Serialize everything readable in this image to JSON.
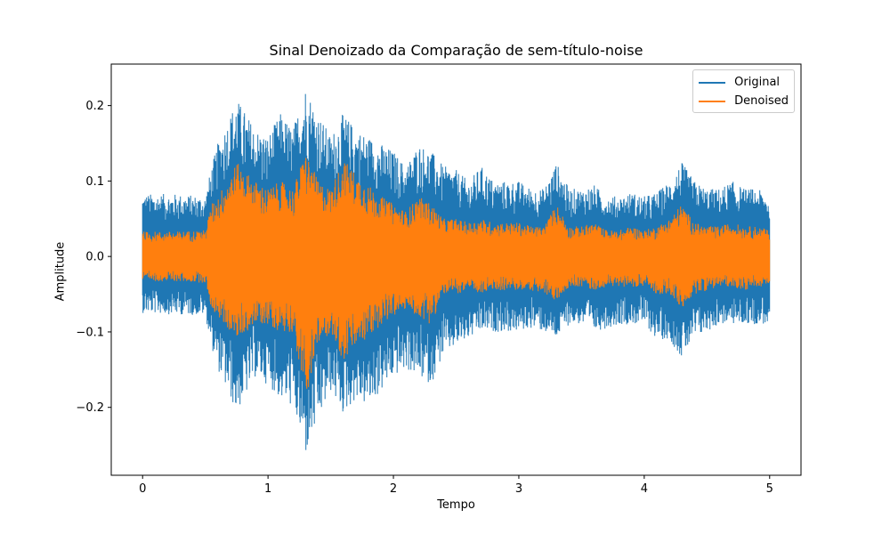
{
  "chart_data": {
    "type": "line",
    "title": "Sinal Denoizado da Comparação de sem-título-noise",
    "xlabel": "Tempo",
    "ylabel": "Amplitude",
    "xlim": [
      -0.25,
      5.25
    ],
    "ylim": [
      -0.29,
      0.255
    ],
    "xticks": [
      0,
      1,
      2,
      3,
      4,
      5
    ],
    "xtick_labels": [
      "0",
      "1",
      "2",
      "3",
      "4",
      "5"
    ],
    "yticks": [
      -0.2,
      -0.1,
      0.0,
      0.1,
      0.2
    ],
    "ytick_labels": [
      "−0.2",
      "−0.1",
      "0.0",
      "0.1",
      "0.2"
    ],
    "grid": false,
    "legend_position": "top-right",
    "series": [
      {
        "name": "Original",
        "color": "#1f77b4",
        "x": [
          0,
          0.25,
          0.5,
          0.55,
          0.6,
          0.75,
          0.9,
          1.0,
          1.1,
          1.2,
          1.3,
          1.4,
          1.5,
          1.6,
          1.7,
          1.8,
          1.9,
          2.0,
          2.1,
          2.2,
          2.3,
          2.4,
          2.5,
          2.6,
          2.7,
          2.8,
          2.9,
          3.0,
          3.1,
          3.2,
          3.3,
          3.4,
          3.5,
          3.6,
          3.7,
          3.8,
          3.9,
          4.0,
          4.1,
          4.2,
          4.3,
          4.4,
          4.5,
          4.6,
          4.7,
          4.8,
          4.9,
          5.0
        ],
        "upper": [
          0.083,
          0.083,
          0.08,
          0.12,
          0.15,
          0.21,
          0.17,
          0.16,
          0.19,
          0.17,
          0.228,
          0.19,
          0.16,
          0.19,
          0.17,
          0.16,
          0.15,
          0.14,
          0.12,
          0.15,
          0.14,
          0.12,
          0.115,
          0.1,
          0.12,
          0.1,
          0.1,
          0.1,
          0.09,
          0.09,
          0.125,
          0.09,
          0.09,
          0.095,
          0.08,
          0.08,
          0.085,
          0.08,
          0.085,
          0.1,
          0.125,
          0.1,
          0.09,
          0.09,
          0.1,
          0.09,
          0.09,
          0.08
        ],
        "lower": [
          -0.075,
          -0.077,
          -0.078,
          -0.12,
          -0.15,
          -0.208,
          -0.16,
          -0.17,
          -0.19,
          -0.2,
          -0.265,
          -0.22,
          -0.18,
          -0.21,
          -0.19,
          -0.2,
          -0.18,
          -0.16,
          -0.15,
          -0.16,
          -0.17,
          -0.13,
          -0.12,
          -0.11,
          -0.1,
          -0.1,
          -0.1,
          -0.1,
          -0.095,
          -0.1,
          -0.11,
          -0.09,
          -0.09,
          -0.1,
          -0.095,
          -0.09,
          -0.09,
          -0.09,
          -0.11,
          -0.11,
          -0.135,
          -0.11,
          -0.1,
          -0.09,
          -0.09,
          -0.09,
          -0.09,
          -0.09
        ]
      },
      {
        "name": "Denoised",
        "color": "#ff7f0e",
        "x": [
          0,
          0.25,
          0.5,
          0.55,
          0.6,
          0.75,
          0.9,
          1.0,
          1.1,
          1.2,
          1.3,
          1.4,
          1.5,
          1.6,
          1.7,
          1.8,
          1.9,
          2.0,
          2.1,
          2.2,
          2.3,
          2.4,
          2.5,
          2.6,
          2.7,
          2.8,
          2.9,
          3.0,
          3.1,
          3.2,
          3.3,
          3.4,
          3.5,
          3.6,
          3.7,
          3.8,
          3.9,
          4.0,
          4.1,
          4.2,
          4.3,
          4.4,
          4.5,
          4.6,
          4.7,
          4.8,
          4.9,
          5.0
        ],
        "upper": [
          0.033,
          0.033,
          0.035,
          0.07,
          0.08,
          0.125,
          0.1,
          0.09,
          0.1,
          0.09,
          0.14,
          0.1,
          0.09,
          0.13,
          0.11,
          0.095,
          0.08,
          0.07,
          0.06,
          0.08,
          0.07,
          0.05,
          0.05,
          0.045,
          0.05,
          0.045,
          0.045,
          0.045,
          0.04,
          0.04,
          0.07,
          0.04,
          0.04,
          0.045,
          0.035,
          0.035,
          0.04,
          0.035,
          0.04,
          0.05,
          0.07,
          0.045,
          0.04,
          0.04,
          0.045,
          0.04,
          0.04,
          0.035
        ],
        "lower": [
          -0.033,
          -0.033,
          -0.035,
          -0.07,
          -0.08,
          -0.11,
          -0.09,
          -0.09,
          -0.1,
          -0.1,
          -0.19,
          -0.12,
          -0.1,
          -0.14,
          -0.12,
          -0.11,
          -0.09,
          -0.08,
          -0.07,
          -0.08,
          -0.09,
          -0.05,
          -0.05,
          -0.045,
          -0.05,
          -0.045,
          -0.045,
          -0.045,
          -0.045,
          -0.05,
          -0.06,
          -0.04,
          -0.04,
          -0.045,
          -0.04,
          -0.04,
          -0.04,
          -0.04,
          -0.05,
          -0.05,
          -0.07,
          -0.05,
          -0.045,
          -0.04,
          -0.04,
          -0.045,
          -0.04,
          -0.04
        ]
      }
    ]
  }
}
